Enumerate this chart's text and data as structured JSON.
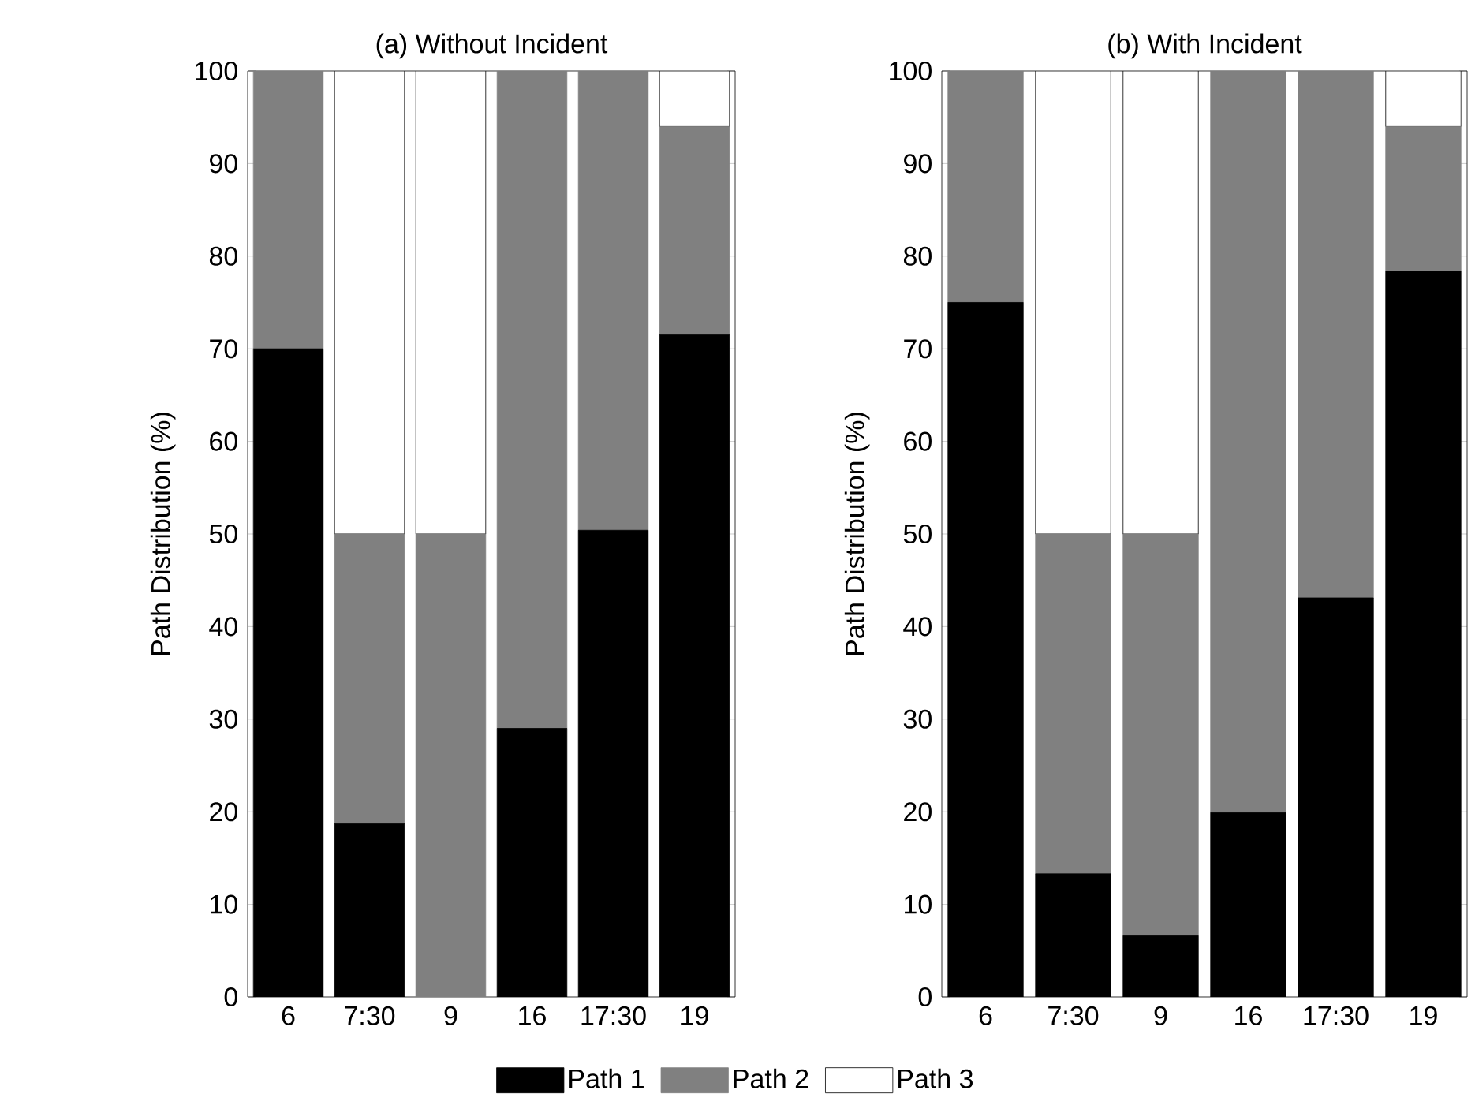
{
  "chart_data": [
    {
      "type": "bar",
      "title": "(a) Without Incident",
      "ylabel": "Path Distribution (%)",
      "stacked": true,
      "legend": "bottom",
      "categories": [
        "6",
        "7:30",
        "9",
        "16",
        "17:30",
        "19"
      ],
      "ylim": [
        0,
        100
      ],
      "yticks": [
        0,
        10,
        20,
        30,
        40,
        50,
        60,
        70,
        80,
        90,
        100
      ],
      "series": [
        {
          "name": "Path 1",
          "color": "#000000",
          "values": [
            70,
            18.7,
            0,
            29,
            50.4,
            71.5
          ]
        },
        {
          "name": "Path 2",
          "color": "#808080",
          "values": [
            30,
            31.3,
            50,
            71,
            49.6,
            22.5
          ]
        },
        {
          "name": "Path 3",
          "color": "#ffffff",
          "values": [
            0,
            50,
            50,
            0,
            0,
            6
          ]
        }
      ]
    },
    {
      "type": "bar",
      "title": "(b) With Incident",
      "ylabel": "Path Distribution (%)",
      "stacked": true,
      "categories": [
        "6",
        "7:30",
        "9",
        "16",
        "17:30",
        "19"
      ],
      "ylim": [
        0,
        100
      ],
      "yticks": [
        0,
        10,
        20,
        30,
        40,
        50,
        60,
        70,
        80,
        90,
        100
      ],
      "series": [
        {
          "color": "#000000",
          "values": [
            75,
            13.3,
            6.6,
            19.9,
            43.1,
            78.4
          ]
        },
        {
          "color": "#808080",
          "values": [
            25,
            36.7,
            43.4,
            80.1,
            56.9,
            15.6
          ]
        },
        {
          "color": "#ffffff",
          "values": [
            0,
            50,
            50,
            0,
            0,
            6
          ]
        }
      ]
    }
  ]
}
